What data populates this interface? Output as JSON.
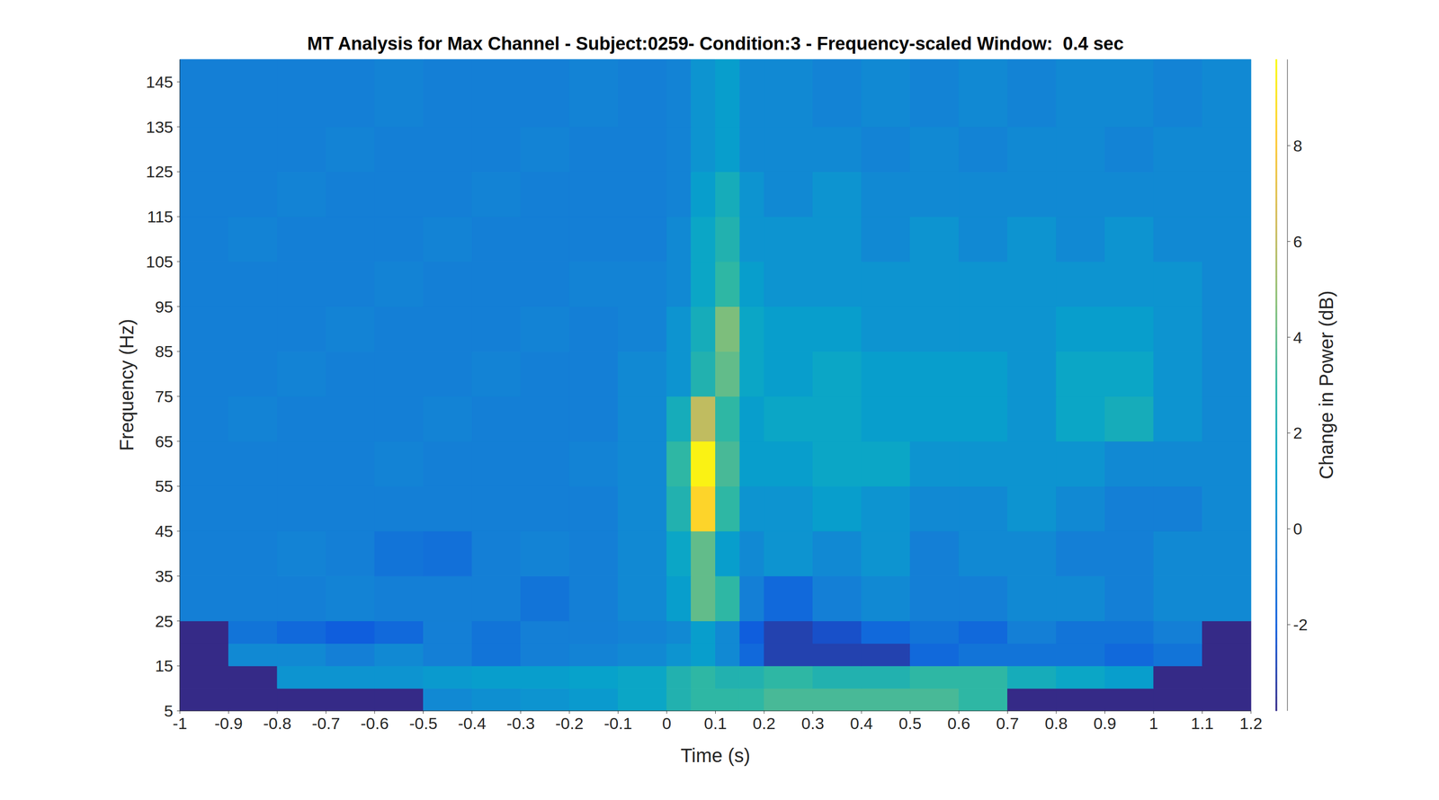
{
  "chart_data": {
    "type": "heatmap",
    "title": "MT Analysis for Max Channel - Subject:0259- Condition:3 - Frequency-scaled Window:  0.4 sec",
    "x_label": "Time (s)",
    "y_label": "Frequency (Hz)",
    "x_edges": [
      -1,
      -0.9,
      -0.8,
      -0.7,
      -0.6,
      -0.5,
      -0.4,
      -0.3,
      -0.2,
      -0.1,
      0,
      0.05,
      0.1,
      0.15,
      0.2,
      0.3,
      0.4,
      0.5,
      0.6,
      0.7,
      0.8,
      0.9,
      1,
      1.1,
      1.2
    ],
    "y_edges": [
      5,
      10,
      15,
      20,
      25,
      35,
      45,
      55,
      65,
      75,
      85,
      95,
      105,
      115,
      125,
      135,
      150
    ],
    "values": [
      [
        null,
        null,
        null,
        null,
        null,
        0,
        0.3,
        0.5,
        0.8,
        1.5,
        2.5,
        3,
        3,
        3,
        3.5,
        3.5,
        3.5,
        3.5,
        3,
        null,
        null,
        null,
        null,
        null
      ],
      [
        null,
        null,
        0.5,
        0.5,
        0.5,
        0.8,
        1,
        1,
        1.2,
        1.5,
        2.5,
        3,
        2.5,
        2.5,
        3,
        2.5,
        2.5,
        3,
        3,
        2,
        1.5,
        1,
        null,
        null
      ],
      [
        null,
        0,
        0,
        -0.5,
        0,
        -0.5,
        -1,
        -0.5,
        -0.3,
        0,
        0.5,
        1,
        0,
        -1.5,
        -3,
        -3,
        -3,
        -1.5,
        -1,
        -1,
        -1,
        -1.5,
        -1,
        null
      ],
      [
        null,
        -1,
        -1.5,
        -2,
        -1.5,
        -0.5,
        -1,
        -0.5,
        -0.5,
        -0.3,
        0,
        1,
        0,
        -2,
        -3,
        -2.5,
        -1.5,
        -1,
        -1.5,
        -0.5,
        -1,
        -1,
        -0.5,
        null
      ],
      [
        -0.5,
        -0.5,
        -0.5,
        -0.3,
        -0.5,
        -0.5,
        -0.5,
        -1,
        -0.5,
        0,
        1,
        4,
        3,
        -0.5,
        -1.5,
        -0.5,
        0,
        -0.5,
        -0.5,
        0,
        0,
        -0.5,
        0,
        0
      ],
      [
        -0.5,
        -0.5,
        -0.3,
        -0.5,
        -1,
        -1.2,
        -0.5,
        -0.3,
        -0.5,
        0,
        1.5,
        4,
        1,
        0,
        0.5,
        0,
        0.5,
        -0.5,
        0,
        0,
        -0.5,
        -0.5,
        0,
        0
      ],
      [
        -0.5,
        -0.5,
        -0.5,
        -0.5,
        -0.5,
        -0.5,
        -0.5,
        -0.5,
        -0.5,
        0,
        2.5,
        8.5,
        3,
        0.5,
        0.5,
        1,
        0.5,
        0,
        0,
        0.5,
        0,
        -0.5,
        -0.5,
        0
      ],
      [
        -0.5,
        -0.5,
        -0.5,
        -0.5,
        -0.3,
        -0.5,
        -0.5,
        -0.5,
        -0.3,
        0,
        3,
        9.5,
        3.5,
        1,
        1,
        1.5,
        1.5,
        0.5,
        0.5,
        0.5,
        0.5,
        0,
        0,
        0
      ],
      [
        -0.5,
        -0.3,
        -0.5,
        -0.5,
        -0.5,
        -0.3,
        -0.5,
        -0.5,
        -0.5,
        0,
        2,
        6,
        3,
        1,
        1.5,
        1.5,
        1,
        1,
        1,
        0.5,
        1.5,
        2,
        0.5,
        0
      ],
      [
        -0.5,
        -0.5,
        -0.3,
        -0.5,
        -0.5,
        -0.5,
        -0.3,
        -0.5,
        -0.5,
        0,
        0.5,
        2.5,
        4,
        1.5,
        1,
        1.5,
        1,
        1,
        1,
        0.5,
        1.5,
        1.5,
        0.5,
        0
      ],
      [
        -0.5,
        -0.5,
        -0.5,
        -0.3,
        -0.5,
        -0.5,
        -0.5,
        -0.3,
        -0.5,
        -0.3,
        0.5,
        2,
        4.5,
        1.5,
        1,
        1,
        0.5,
        0.5,
        0.5,
        0.5,
        1,
        1,
        0.5,
        0
      ],
      [
        -0.5,
        -0.5,
        -0.5,
        -0.5,
        -0.3,
        -0.5,
        -0.5,
        -0.5,
        -0.3,
        -0.3,
        0,
        1.5,
        3,
        1,
        0.5,
        0.5,
        0.5,
        0.5,
        0.5,
        0.5,
        0.5,
        0.5,
        0.5,
        0
      ],
      [
        -0.5,
        -0.3,
        -0.5,
        -0.5,
        -0.5,
        -0.3,
        -0.5,
        -0.5,
        -0.5,
        -0.5,
        0,
        1.5,
        2.5,
        0.5,
        0.5,
        0.5,
        0,
        0.5,
        0,
        0.5,
        0,
        0.5,
        0,
        0
      ],
      [
        -0.5,
        -0.5,
        -0.3,
        -0.5,
        -0.5,
        -0.5,
        -0.3,
        -0.5,
        -0.5,
        -0.5,
        -0.3,
        1,
        2,
        0.5,
        0,
        0.5,
        0,
        0,
        0,
        0,
        0,
        0,
        0,
        0
      ],
      [
        -0.5,
        -0.5,
        -0.5,
        -0.3,
        -0.5,
        -0.5,
        -0.5,
        -0.3,
        -0.5,
        -0.5,
        -0.3,
        0.5,
        1,
        0,
        0,
        0,
        -0.3,
        0,
        -0.3,
        0,
        0,
        -0.3,
        0,
        0
      ],
      [
        -0.5,
        -0.5,
        -0.5,
        -0.5,
        -0.3,
        -0.5,
        -0.5,
        -0.5,
        -0.3,
        -0.5,
        -0.3,
        0.5,
        1,
        0,
        0,
        -0.3,
        0,
        -0.3,
        0,
        -0.3,
        0,
        0,
        -0.3,
        0
      ]
    ],
    "xlim": [
      -1,
      1.2
    ],
    "xticks": [
      -1,
      -0.9,
      -0.8,
      -0.7,
      -0.6,
      -0.5,
      -0.4,
      -0.3,
      -0.2,
      -0.1,
      0,
      0.1,
      0.2,
      0.3,
      0.4,
      0.5,
      0.6,
      0.7,
      0.8,
      0.9,
      1,
      1.1,
      1.2
    ],
    "ylim": [
      5,
      150
    ],
    "yticks": [
      5,
      15,
      25,
      35,
      45,
      55,
      65,
      75,
      85,
      95,
      105,
      115,
      125,
      135,
      145
    ],
    "colorbar": {
      "label": "Change in Power (dB)",
      "lim": [
        -3.8,
        9.8
      ],
      "ticks": [
        -2,
        0,
        2,
        4,
        6,
        8
      ]
    }
  }
}
